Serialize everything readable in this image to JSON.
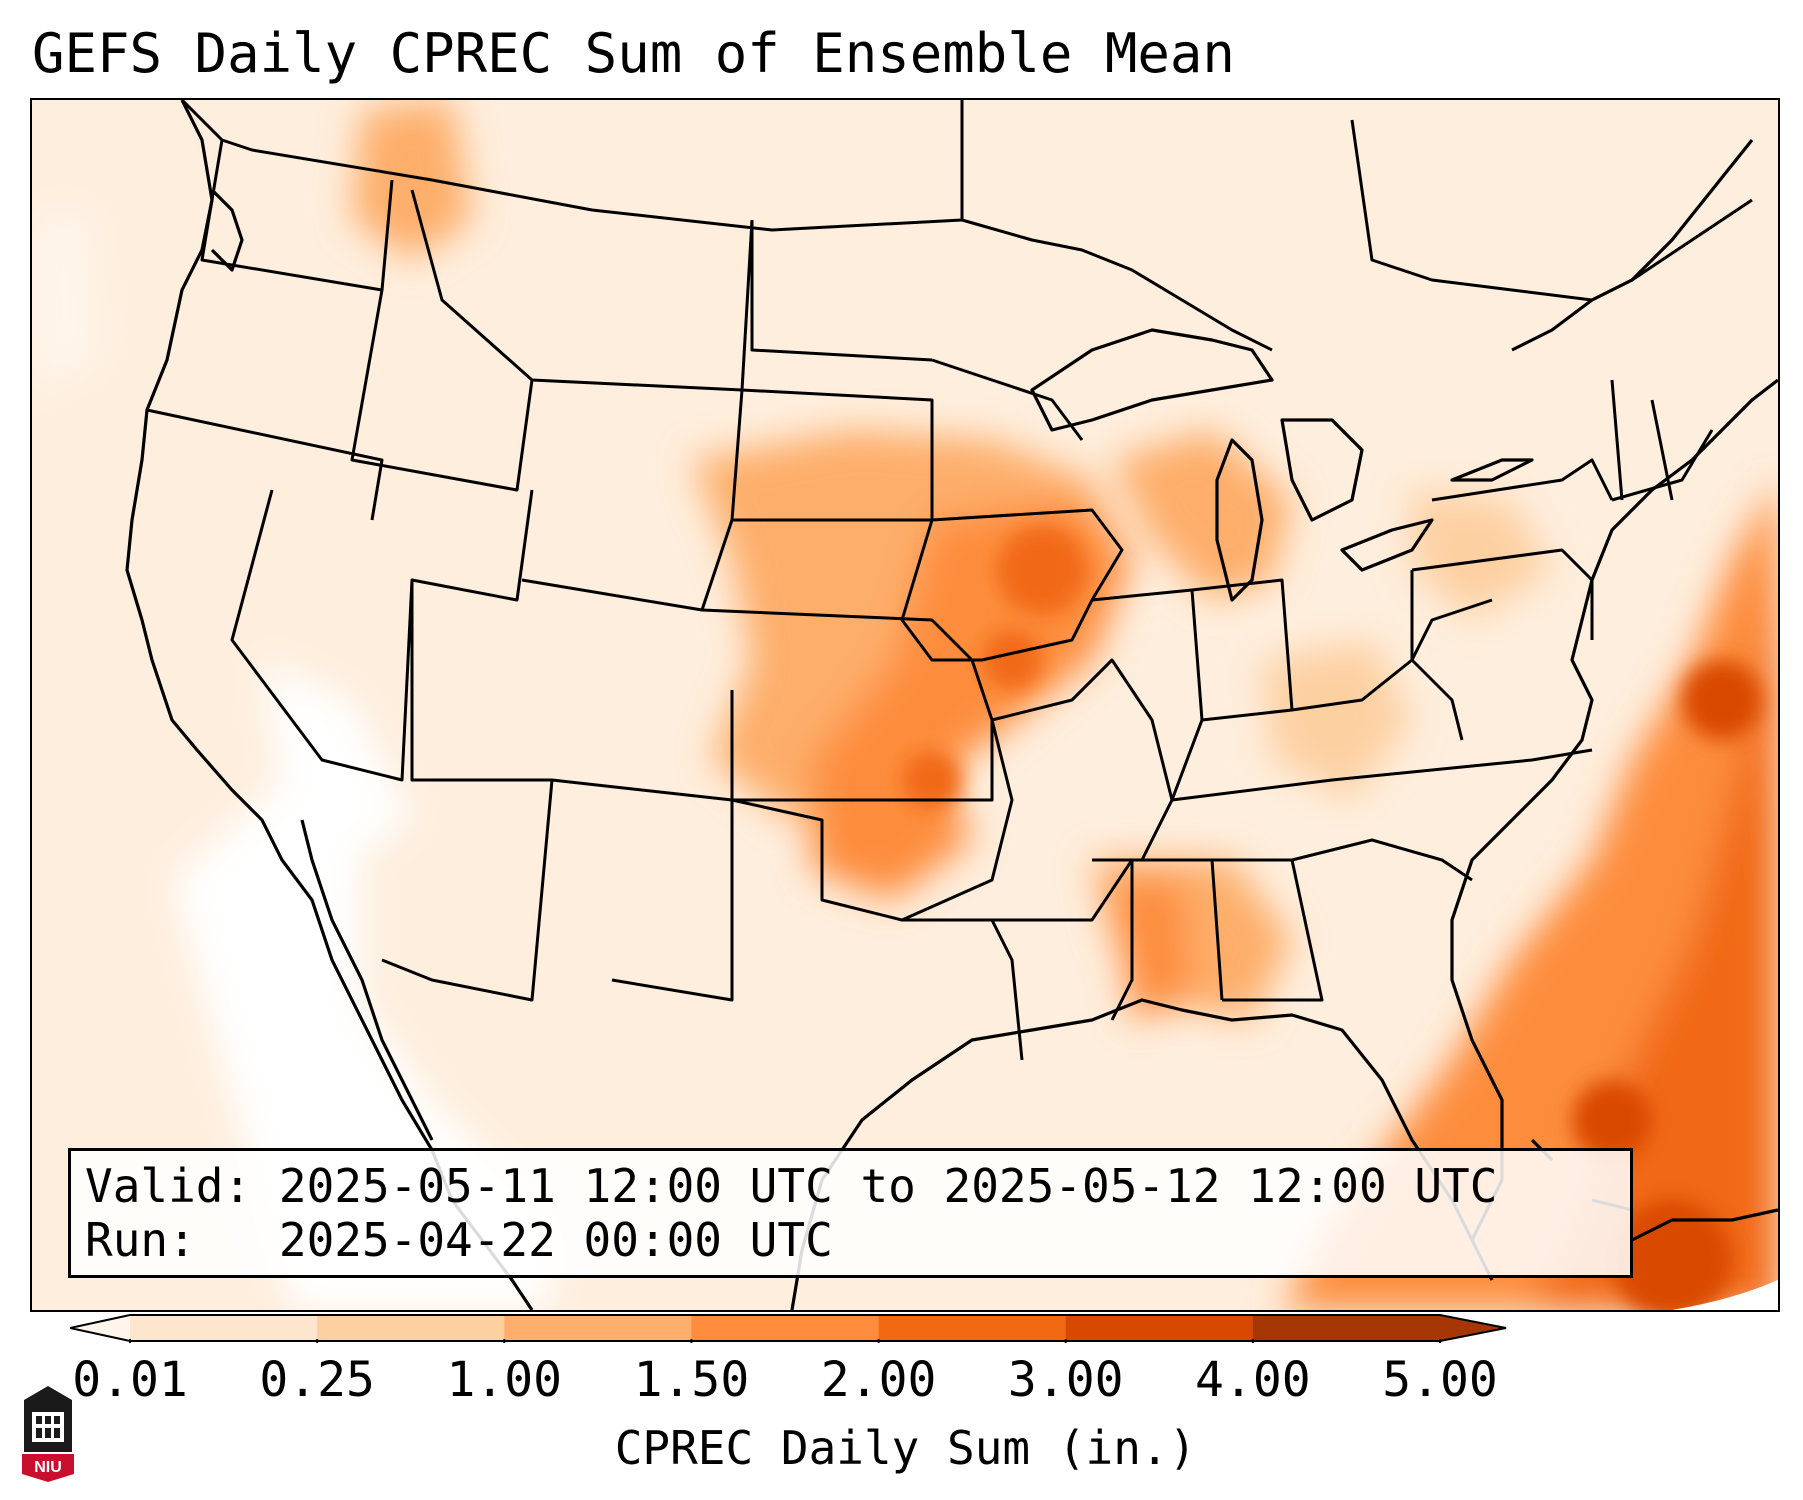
{
  "title": "GEFS Daily CPREC Sum of Ensemble Mean",
  "info": {
    "valid_label": "Valid:",
    "valid_value": "2025-05-11 12:00 UTC to 2025-05-12 12:00 UTC",
    "run_label": "Run:",
    "run_value": "2025-04-22 00:00 UTC"
  },
  "colorbar": {
    "label": "CPREC Daily Sum (in.)",
    "ticks": [
      "0.01",
      "0.25",
      "1.00",
      "1.50",
      "2.00",
      "3.00",
      "4.00",
      "5.00"
    ],
    "colors": [
      "#fff5eb",
      "#fee6ce",
      "#fdd0a2",
      "#fdae6b",
      "#fd8d3c",
      "#f16913",
      "#d94801",
      "#a63603"
    ],
    "extend": "both"
  },
  "logo": {
    "text": "NIU",
    "icon": "university-seal-icon"
  },
  "map": {
    "projection": "Lambert conformal, CONUS",
    "field": "CPREC daily sum",
    "maxima_regions": [
      "Iowa / Missouri",
      "Oklahoma",
      "Mississippi / Alabama",
      "Western Atlantic"
    ]
  }
}
